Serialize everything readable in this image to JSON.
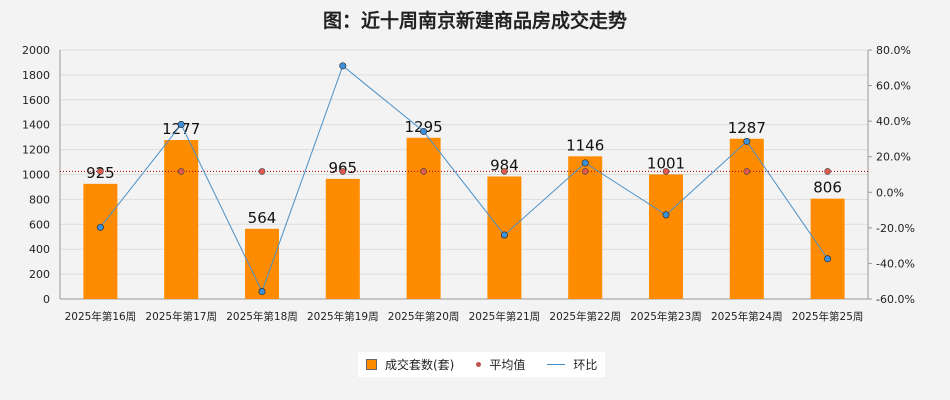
{
  "chart_data": {
    "type": "bar",
    "title": "图：近十周南京新建商品房成交走势",
    "categories": [
      "2025年第16周",
      "2025年第17周",
      "2025年第18周",
      "2025年第19周",
      "2025年第20周",
      "2025年第21周",
      "2025年第22周",
      "2025年第23周",
      "2025年第24周",
      "2025年第25周"
    ],
    "series": [
      {
        "name": "成交套数(套)",
        "type": "bar",
        "axis": "left",
        "color": "#ff8c00",
        "values": [
          925,
          1277,
          564,
          965,
          1295,
          984,
          1146,
          1001,
          1287,
          806
        ]
      },
      {
        "name": "平均值",
        "type": "line",
        "axis": "left",
        "color": "#c0504d",
        "values": [
          1025,
          1025,
          1025,
          1025,
          1025,
          1025,
          1025,
          1025,
          1025,
          1025
        ]
      },
      {
        "name": "环比",
        "type": "line",
        "axis": "right",
        "color": "#4a90c8",
        "values": [
          -19.7,
          38.1,
          -55.8,
          71.1,
          34.2,
          -24.0,
          16.5,
          -12.7,
          28.6,
          -37.4
        ]
      }
    ],
    "left_axis": {
      "ylim": [
        0,
        2000
      ],
      "ticks": [
        "0",
        "200",
        "400",
        "600",
        "800",
        "1000",
        "1200",
        "1400",
        "1600",
        "1800",
        "2000"
      ]
    },
    "right_axis": {
      "ylim": [
        -60,
        80
      ],
      "ticks": [
        "-60.0%",
        "-40.0%",
        "-20.0%",
        "0.0%",
        "20.0%",
        "40.0%",
        "60.0%",
        "80.0%"
      ]
    },
    "legend": "bottom",
    "grid": true
  }
}
